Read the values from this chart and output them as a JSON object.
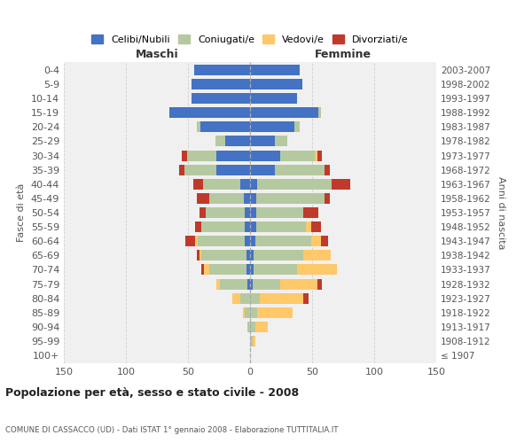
{
  "age_groups": [
    "100+",
    "95-99",
    "90-94",
    "85-89",
    "80-84",
    "75-79",
    "70-74",
    "65-69",
    "60-64",
    "55-59",
    "50-54",
    "45-49",
    "40-44",
    "35-39",
    "30-34",
    "25-29",
    "20-24",
    "15-19",
    "10-14",
    "5-9",
    "0-4"
  ],
  "birth_years": [
    "≤ 1907",
    "1908-1912",
    "1913-1917",
    "1918-1922",
    "1923-1927",
    "1928-1932",
    "1933-1937",
    "1938-1942",
    "1943-1947",
    "1948-1952",
    "1953-1957",
    "1958-1962",
    "1963-1967",
    "1968-1972",
    "1973-1977",
    "1978-1982",
    "1983-1987",
    "1988-1992",
    "1993-1997",
    "1998-2002",
    "2003-2007"
  ],
  "male": {
    "celibi": [
      0,
      0,
      0,
      0,
      0,
      2,
      3,
      3,
      4,
      4,
      4,
      5,
      8,
      27,
      27,
      20,
      40,
      65,
      47,
      47,
      45
    ],
    "coniugati": [
      0,
      0,
      2,
      4,
      8,
      22,
      30,
      36,
      38,
      35,
      32,
      28,
      30,
      26,
      24,
      8,
      3,
      0,
      0,
      0,
      0
    ],
    "vedovi": [
      0,
      0,
      0,
      2,
      6,
      3,
      4,
      2,
      2,
      0,
      0,
      0,
      0,
      0,
      0,
      0,
      0,
      0,
      0,
      0,
      0
    ],
    "divorziati": [
      0,
      0,
      0,
      0,
      0,
      0,
      2,
      2,
      8,
      5,
      5,
      10,
      8,
      4,
      4,
      0,
      0,
      0,
      0,
      0,
      0
    ]
  },
  "female": {
    "nubili": [
      0,
      0,
      0,
      0,
      0,
      2,
      3,
      3,
      4,
      5,
      5,
      5,
      6,
      20,
      24,
      20,
      36,
      55,
      38,
      42,
      40
    ],
    "coniugate": [
      0,
      2,
      4,
      6,
      8,
      22,
      35,
      40,
      45,
      40,
      38,
      55,
      60,
      40,
      28,
      10,
      4,
      2,
      0,
      0,
      0
    ],
    "vedove": [
      0,
      2,
      10,
      28,
      35,
      30,
      32,
      22,
      8,
      4,
      0,
      0,
      0,
      0,
      2,
      0,
      0,
      0,
      0,
      0,
      0
    ],
    "divorziate": [
      0,
      0,
      0,
      0,
      4,
      4,
      0,
      0,
      6,
      8,
      12,
      4,
      15,
      4,
      4,
      0,
      0,
      0,
      0,
      0,
      0
    ]
  },
  "colors": {
    "celibi": "#4472c4",
    "coniugati": "#b5c9a0",
    "vedovi": "#ffc869",
    "divorziati": "#c0392b"
  },
  "xlim": 150,
  "title": "Popolazione per età, sesso e stato civile - 2008",
  "subtitle": "COMUNE DI CASSACCO (UD) - Dati ISTAT 1° gennaio 2008 - Elaborazione TUTTITALIA.IT",
  "xlabel_left": "Maschi",
  "xlabel_right": "Femmine",
  "ylabel_left": "Fasce di età",
  "ylabel_right": "Anni di nascita",
  "bg_color": "#f0f0f0",
  "grid_color": "#cccccc"
}
